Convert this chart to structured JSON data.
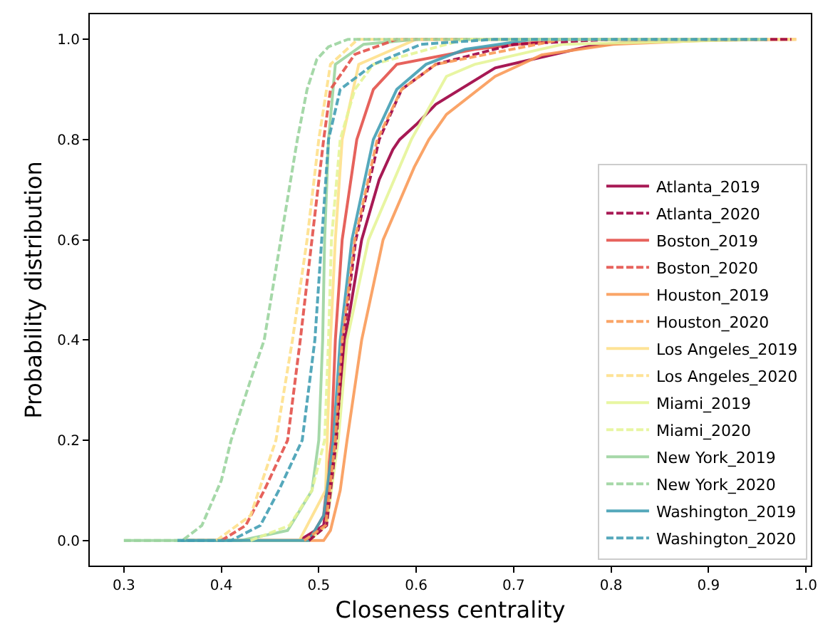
{
  "chart_data": {
    "type": "line",
    "xlabel": "Closeness centrality",
    "ylabel": "Probability distribution",
    "xlim": [
      0.265,
      1.005
    ],
    "ylim": [
      -0.05,
      1.05
    ],
    "xticks": [
      0.3,
      0.4,
      0.5,
      0.6,
      0.7,
      0.8,
      0.9,
      {
        "value": 1,
        "label": "1.0"
      }
    ],
    "yticks": [
      {
        "value": 0,
        "label": "0.0"
      },
      0.2,
      0.4,
      0.6,
      0.8,
      {
        "value": 1,
        "label": "1.0"
      }
    ],
    "grid": false,
    "legend": "bottom right",
    "marker": "none",
    "series": [
      {
        "name": "Atlanta_2019",
        "color": "#9e0142",
        "line_style": "solid",
        "x": [
          0.36,
          0.48,
          0.505,
          0.517,
          0.527,
          0.544,
          0.562,
          0.576,
          0.583,
          0.6,
          0.62,
          0.681,
          0.777,
          0.85,
          0.96
        ],
        "values": [
          0,
          0,
          0.03,
          0.2,
          0.4,
          0.6,
          0.72,
          0.78,
          0.8,
          0.83,
          0.87,
          0.943,
          0.986,
          1,
          1
        ]
      },
      {
        "name": "Atlanta_2020",
        "color": "#9e0142",
        "line_style": "dashed",
        "x": [
          0.49,
          0.508,
          0.518,
          0.525,
          0.538,
          0.562,
          0.585,
          0.62,
          0.7,
          0.8,
          0.985
        ],
        "values": [
          0,
          0.03,
          0.2,
          0.4,
          0.6,
          0.8,
          0.9,
          0.95,
          0.99,
          1,
          1
        ]
      },
      {
        "name": "Boston_2019",
        "color": "#e4524b",
        "line_style": "solid",
        "x": [
          0.36,
          0.49,
          0.505,
          0.513,
          0.517,
          0.524,
          0.539,
          0.556,
          0.58,
          0.66,
          0.75,
          0.96
        ],
        "values": [
          0,
          0,
          0.05,
          0.2,
          0.4,
          0.6,
          0.8,
          0.9,
          0.95,
          0.98,
          1,
          1
        ]
      },
      {
        "name": "Boston_2020",
        "color": "#e4524b",
        "line_style": "dashed",
        "x": [
          0.4,
          0.425,
          0.444,
          0.468,
          0.481,
          0.493,
          0.505,
          0.512,
          0.537,
          0.58,
          0.96
        ],
        "values": [
          0,
          0.03,
          0.1,
          0.2,
          0.4,
          0.6,
          0.8,
          0.9,
          0.97,
          1,
          1
        ]
      },
      {
        "name": "Houston_2019",
        "color": "#fa9b58",
        "line_style": "solid",
        "x": [
          0.36,
          0.505,
          0.512,
          0.522,
          0.529,
          0.544,
          0.566,
          0.598,
          0.613,
          0.631,
          0.681,
          0.729,
          0.802,
          0.9,
          0.99
        ],
        "values": [
          0,
          0,
          0.02,
          0.1,
          0.2,
          0.4,
          0.6,
          0.745,
          0.8,
          0.85,
          0.926,
          0.969,
          0.99,
          0.998,
          1
        ]
      },
      {
        "name": "Houston_2020",
        "color": "#fa9b58",
        "line_style": "dashed",
        "x": [
          0.485,
          0.507,
          0.517,
          0.524,
          0.537,
          0.56,
          0.585,
          0.62,
          0.75,
          0.96
        ],
        "values": [
          0,
          0.03,
          0.2,
          0.4,
          0.6,
          0.8,
          0.9,
          0.95,
          1,
          1
        ]
      },
      {
        "name": "Los Angeles_2019",
        "color": "#fee08b",
        "line_style": "solid",
        "x": [
          0.36,
          0.48,
          0.507,
          0.512,
          0.517,
          0.524,
          0.541,
          0.6,
          0.99
        ],
        "values": [
          0,
          0,
          0.1,
          0.4,
          0.6,
          0.8,
          0.95,
          1,
          1
        ]
      },
      {
        "name": "Los Angeles_2020",
        "color": "#fee08b",
        "line_style": "dashed",
        "x": [
          0.395,
          0.43,
          0.456,
          0.473,
          0.488,
          0.5,
          0.512,
          0.54,
          0.96
        ],
        "values": [
          0,
          0.05,
          0.2,
          0.4,
          0.6,
          0.8,
          0.95,
          1,
          1
        ]
      },
      {
        "name": "Miami_2019",
        "color": "#e6f598",
        "line_style": "solid",
        "x": [
          0.36,
          0.49,
          0.508,
          0.52,
          0.529,
          0.551,
          0.595,
          0.631,
          0.66,
          0.75,
          0.96
        ],
        "values": [
          0,
          0,
          0.03,
          0.2,
          0.4,
          0.6,
          0.8,
          0.926,
          0.95,
          0.99,
          1
        ]
      },
      {
        "name": "Miami_2020",
        "color": "#e6f598",
        "line_style": "dashed",
        "x": [
          0.43,
          0.47,
          0.493,
          0.506,
          0.51,
          0.513,
          0.522,
          0.537,
          0.556,
          0.65,
          0.96
        ],
        "values": [
          0,
          0.03,
          0.1,
          0.2,
          0.4,
          0.6,
          0.8,
          0.9,
          0.95,
          1,
          1
        ]
      },
      {
        "name": "New York_2019",
        "color": "#9cd49f",
        "line_style": "solid",
        "x": [
          0.3,
          0.42,
          0.468,
          0.493,
          0.5,
          0.504,
          0.506,
          0.51,
          0.517,
          0.546,
          0.6,
          0.96
        ],
        "values": [
          0,
          0,
          0.02,
          0.1,
          0.2,
          0.4,
          0.6,
          0.8,
          0.95,
          0.99,
          1,
          1
        ]
      },
      {
        "name": "New York_2020",
        "color": "#9cd49f",
        "line_style": "dashed",
        "x": [
          0.3,
          0.36,
          0.38,
          0.4,
          0.41,
          0.43,
          0.444,
          0.461,
          0.478,
          0.488,
          0.498,
          0.51,
          0.53,
          0.96
        ],
        "values": [
          0,
          0,
          0.03,
          0.12,
          0.2,
          0.32,
          0.4,
          0.6,
          0.8,
          0.9,
          0.96,
          0.985,
          1,
          1
        ]
      },
      {
        "name": "Washington_2019",
        "color": "#439fb4",
        "line_style": "solid",
        "x": [
          0.355,
          0.49,
          0.505,
          0.515,
          0.522,
          0.534,
          0.556,
          0.58,
          0.61,
          0.65,
          0.72,
          0.955
        ],
        "values": [
          0,
          0,
          0.05,
          0.2,
          0.4,
          0.6,
          0.8,
          0.9,
          0.95,
          0.98,
          1,
          1
        ]
      },
      {
        "name": "Washington_2020",
        "color": "#439fb4",
        "line_style": "dashed",
        "x": [
          0.355,
          0.41,
          0.44,
          0.459,
          0.483,
          0.496,
          0.503,
          0.51,
          0.522,
          0.556,
          0.605,
          0.68,
          0.96
        ],
        "values": [
          0,
          0,
          0.03,
          0.1,
          0.2,
          0.4,
          0.6,
          0.8,
          0.9,
          0.95,
          0.99,
          1,
          1
        ]
      }
    ]
  }
}
